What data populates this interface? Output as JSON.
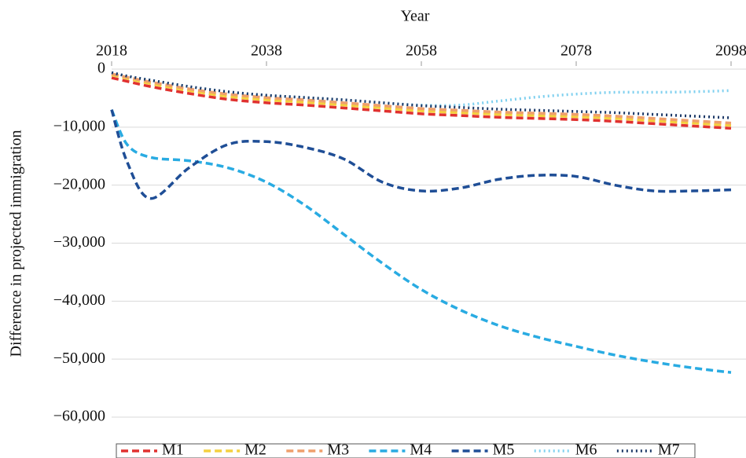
{
  "chart_data": {
    "type": "line",
    "x_label": "Year",
    "y_label": "Difference in projected immigration",
    "x": [
      2018,
      2020,
      2023,
      2028,
      2033,
      2038,
      2043,
      2048,
      2053,
      2058,
      2063,
      2068,
      2073,
      2078,
      2083,
      2088,
      2093,
      2098
    ],
    "series": [
      {
        "name": "M1",
        "color": "#e0312f",
        "style": "dashed",
        "values": [
          -1500,
          -2100,
          -3000,
          -4200,
          -5200,
          -5800,
          -6200,
          -6700,
          -7200,
          -7700,
          -8000,
          -8300,
          -8500,
          -8700,
          -9000,
          -9400,
          -9800,
          -10200
        ]
      },
      {
        "name": "M2",
        "color": "#f4d03f",
        "style": "dashed",
        "values": [
          -1000,
          -1600,
          -2500,
          -3700,
          -4700,
          -5300,
          -5700,
          -6200,
          -6700,
          -7200,
          -7500,
          -7800,
          -8000,
          -8200,
          -8500,
          -8900,
          -9300,
          -9700
        ]
      },
      {
        "name": "M3",
        "color": "#ef9f6c",
        "style": "dashed",
        "values": [
          -800,
          -1400,
          -2200,
          -3400,
          -4300,
          -4900,
          -5300,
          -5800,
          -6300,
          -6800,
          -7100,
          -7400,
          -7600,
          -7800,
          -8100,
          -8500,
          -8900,
          -9300
        ]
      },
      {
        "name": "M4",
        "color": "#29abe2",
        "style": "dashed",
        "values": [
          -7000,
          -13000,
          -15200,
          -15800,
          -17000,
          -19500,
          -23500,
          -28500,
          -33500,
          -38000,
          -41500,
          -44200,
          -46200,
          -47800,
          -49300,
          -50500,
          -51500,
          -52300
        ]
      },
      {
        "name": "M5",
        "color": "#1f4e96",
        "style": "dashed",
        "values": [
          -7000,
          -16000,
          -22300,
          -17000,
          -13000,
          -12500,
          -13500,
          -15500,
          -19500,
          -21000,
          -20500,
          -19000,
          -18300,
          -18500,
          -20000,
          -21000,
          -21000,
          -20800
        ]
      },
      {
        "name": "M6",
        "color": "#7fd0ef",
        "style": "dotted",
        "values": [
          -600,
          -1200,
          -1900,
          -3000,
          -3900,
          -4500,
          -4900,
          -5300,
          -5800,
          -6200,
          -6200,
          -5500,
          -4800,
          -4300,
          -4000,
          -4000,
          -3900,
          -3700
        ]
      },
      {
        "name": "M7",
        "color": "#1a3766",
        "style": "dotted",
        "values": [
          -600,
          -1200,
          -1900,
          -3000,
          -3900,
          -4500,
          -4900,
          -5300,
          -5800,
          -6300,
          -6600,
          -6900,
          -7100,
          -7300,
          -7500,
          -7800,
          -8100,
          -8400
        ]
      }
    ],
    "xlim": [
      2018,
      2098
    ],
    "xticks": [
      2018,
      2038,
      2058,
      2078,
      2098
    ],
    "ylim": [
      -60000,
      0
    ],
    "yticks": [
      0,
      {
        "value": -10000,
        "label": "−10,000"
      },
      {
        "value": -20000,
        "label": "−20,000"
      },
      {
        "value": -30000,
        "label": "−30,000"
      },
      {
        "value": -40000,
        "label": "−40,000"
      },
      {
        "value": -50000,
        "label": "−50,000"
      },
      {
        "value": -60000,
        "label": "−60,000"
      }
    ],
    "grid": true
  }
}
